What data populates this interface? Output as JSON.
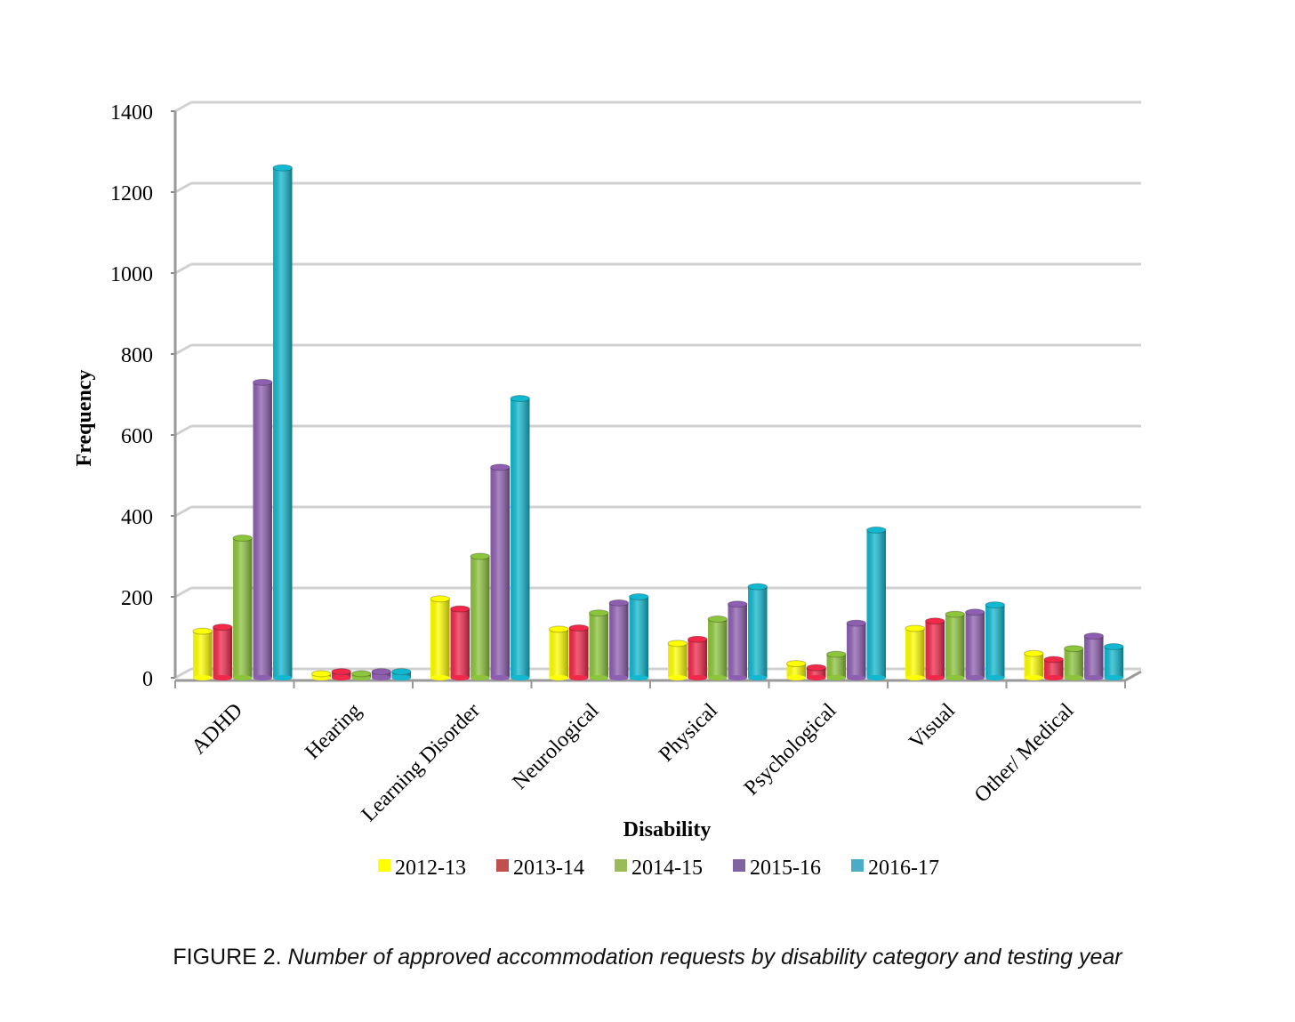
{
  "chart_data": {
    "type": "bar",
    "title": "",
    "xlabel": "Disability",
    "ylabel": "Frequency",
    "ylim": [
      0,
      1400
    ],
    "yticks": [
      0,
      200,
      400,
      600,
      800,
      1000,
      1200,
      1400
    ],
    "grid": true,
    "legend_position": "bottom",
    "categories": [
      "ADHD",
      "Hearing",
      "Learning Disorder",
      "Neurological",
      "Physical",
      "Psychological",
      "Visual",
      "Other/ Medical"
    ],
    "series": [
      {
        "name": "2012-13",
        "color": "#ffff00",
        "legend_color": "#ffff00",
        "values": [
          115,
          10,
          195,
          120,
          85,
          35,
          122,
          60
        ]
      },
      {
        "name": "2013-14",
        "color": "#f0284a",
        "legend_color": "#c0504d",
        "values": [
          125,
          15,
          170,
          123,
          95,
          25,
          140,
          45
        ]
      },
      {
        "name": "2014-15",
        "color": "#8cc43c",
        "legend_color": "#9bbb59",
        "values": [
          345,
          10,
          300,
          160,
          145,
          58,
          157,
          72
        ]
      },
      {
        "name": "2015-16",
        "color": "#8e5fb0",
        "legend_color": "#8064a2",
        "values": [
          730,
          15,
          520,
          185,
          182,
          135,
          162,
          103
        ]
      },
      {
        "name": "2016-17",
        "color": "#12b8cf",
        "legend_color": "#4bacc6",
        "values": [
          1260,
          15,
          690,
          200,
          225,
          365,
          180,
          77
        ]
      }
    ]
  },
  "caption": {
    "label": "FIGURE 2.",
    "text": "Number of approved accommodation requests by disability category and testing year"
  }
}
